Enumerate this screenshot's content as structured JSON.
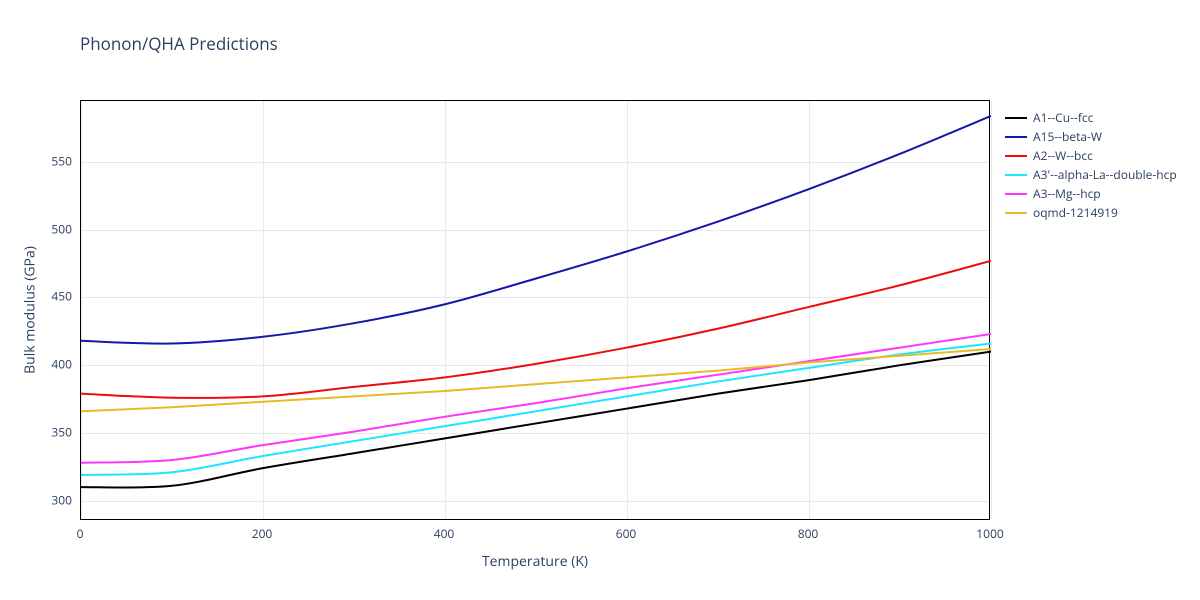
{
  "chart": {
    "title": "Phonon/QHA Predictions",
    "xlabel": "Temperature (K)",
    "ylabel": "Bulk modulus (GPa)",
    "title_fontsize": 17,
    "label_fontsize": 14,
    "tick_fontsize": 12,
    "legend_fontsize": 12,
    "background_color": "#ffffff",
    "grid_color": "#e9e9e9",
    "border_color": "#000000",
    "text_color": "#2a3f5f",
    "line_width": 2,
    "type": "line",
    "xlim": [
      0,
      1000
    ],
    "ylim": [
      285,
      595
    ],
    "xtick_step": 200,
    "ytick_step": 50,
    "xticks": [
      0,
      200,
      400,
      600,
      800,
      1000
    ],
    "yticks": [
      300,
      350,
      400,
      450,
      500,
      550
    ],
    "x_values": [
      0,
      100,
      200,
      300,
      400,
      500,
      600,
      700,
      800,
      900,
      1000
    ],
    "series": [
      {
        "name": "A1--Cu--fcc",
        "color": "#000000",
        "y": [
          310,
          311,
          324,
          335,
          346,
          357,
          368,
          379,
          389,
          400,
          410
        ]
      },
      {
        "name": "A15--beta-W",
        "color": "#1616a7",
        "y": [
          418,
          416,
          421,
          431,
          445,
          464,
          484,
          506,
          530,
          556,
          584
        ]
      },
      {
        "name": "A2--W--bcc",
        "color": "#eb0d0d",
        "y": [
          379,
          376,
          377,
          384,
          391,
          401,
          413,
          427,
          443,
          459,
          477
        ]
      },
      {
        "name": "A3'--alpha-La--double-hcp",
        "color": "#1ce6ff",
        "y": [
          319,
          321,
          333,
          344,
          355,
          366,
          377,
          388,
          398,
          408,
          416
        ]
      },
      {
        "name": "A3--Mg--hcp",
        "color": "#ff34ff",
        "y": [
          328,
          330,
          341,
          351,
          362,
          372,
          383,
          393,
          403,
          413,
          423
        ]
      },
      {
        "name": "oqmd-1214919",
        "color": "#e5bc25",
        "y": [
          366,
          369,
          373,
          377,
          381,
          386,
          391,
          396,
          402,
          407,
          412
        ]
      }
    ]
  }
}
